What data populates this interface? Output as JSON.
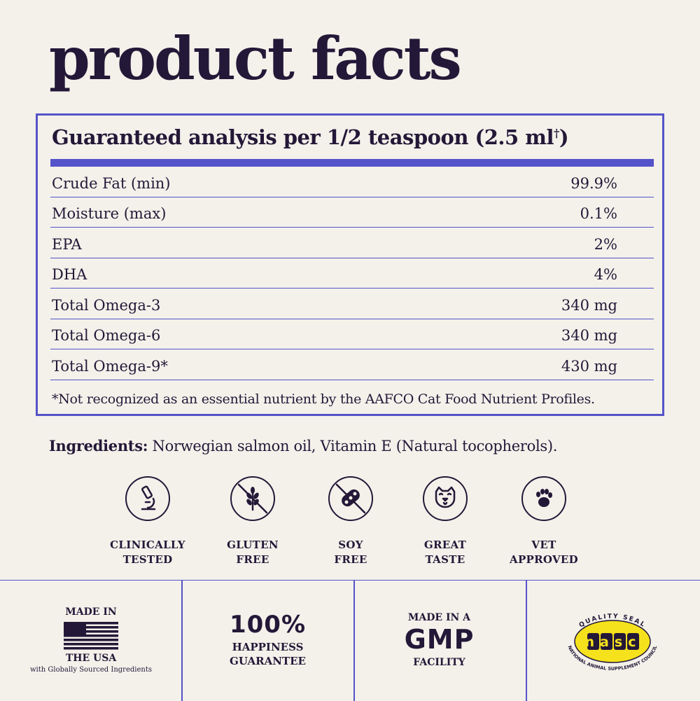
{
  "title": "product facts",
  "facts": {
    "heading": "Guaranteed analysis per 1/2 teaspoon (2.5 ml",
    "heading_mark": "†",
    "heading_close": ")",
    "rows": [
      {
        "name": "Crude Fat (min)",
        "value": "99.9%"
      },
      {
        "name": "Moisture (max)",
        "value": "0.1%"
      },
      {
        "name": "EPA",
        "value": "2%"
      },
      {
        "name": "DHA",
        "value": "4%"
      },
      {
        "name": "Total Omega-3",
        "value": "340 mg"
      },
      {
        "name": "Total Omega-6",
        "value": "340 mg"
      },
      {
        "name": "Total Omega-9*",
        "value": "430 mg"
      }
    ],
    "footnote": "*Not recognized as an essential nutrient by the AAFCO Cat Food Nutrient Profiles."
  },
  "ingredients": {
    "label": "Ingredients:",
    "text": " Norwegian salmon oil, Vitamin E (Natural tocopherols)."
  },
  "badges": [
    {
      "icon": "microscope-icon",
      "line1": "CLINICALLY",
      "line2": "TESTED"
    },
    {
      "icon": "no-gluten-icon",
      "line1": "GLUTEN",
      "line2": "FREE"
    },
    {
      "icon": "no-soy-icon",
      "line1": "SOY",
      "line2": "FREE"
    },
    {
      "icon": "cat-face-icon",
      "line1": "GREAT",
      "line2": "TASTE"
    },
    {
      "icon": "paw-icon",
      "line1": "VET",
      "line2": "APPROVED"
    }
  ],
  "seals": {
    "usa": {
      "line1": "MADE IN",
      "line2": "THE USA",
      "sub": "with Globally Sourced Ingredients"
    },
    "guarantee": {
      "big": "100%",
      "line1": "HAPPINESS",
      "line2": "GUARANTEE"
    },
    "gmp": {
      "line1": "MADE IN A",
      "big": "GMP",
      "line2": "FACILITY"
    },
    "nasc": {
      "top": "QUALITY SEAL",
      "logo": "nasc",
      "bottom": "NATIONAL ANIMAL SUPPLEMENT COUNCIL"
    }
  },
  "colors": {
    "ink": "#241838",
    "accent": "#5553c9",
    "background": "#f3f1ea",
    "seal_yellow": "#f5e21c"
  }
}
